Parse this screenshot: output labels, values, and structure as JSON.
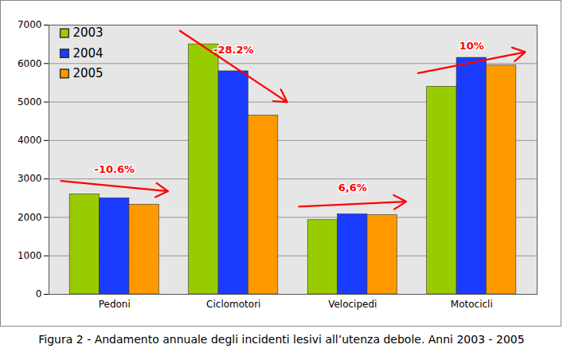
{
  "chart_data": {
    "type": "bar",
    "caption": "Figura 2 - Andamento annuale degli incidenti lesivi all’utenza debole. Anni 2003 - 2005",
    "categories": [
      "Pedoni",
      "Ciclomotori",
      "Velocipedi",
      "Motocicli"
    ],
    "series": [
      {
        "name": "2003",
        "color": "#99cc00",
        "values": [
          2600,
          6500,
          1930,
          5400
        ]
      },
      {
        "name": "2004",
        "color": "#1a3cff",
        "values": [
          2500,
          5800,
          2080,
          6150
        ]
      },
      {
        "name": "2005",
        "color": "#ff9900",
        "values": [
          2330,
          4650,
          2060,
          5950
        ]
      }
    ],
    "annotations": [
      {
        "category": "Pedoni",
        "text": "-10.6%"
      },
      {
        "category": "Ciclomotori",
        "text": "-28.2%"
      },
      {
        "category": "Velocipedi",
        "text": "6,6%"
      },
      {
        "category": "Motocicli",
        "text": "10%"
      }
    ],
    "ylim": [
      0,
      7000
    ],
    "yticks": [
      0,
      1000,
      2000,
      3000,
      4000,
      5000,
      6000,
      7000
    ],
    "grid": true,
    "legend": "top-left"
  }
}
